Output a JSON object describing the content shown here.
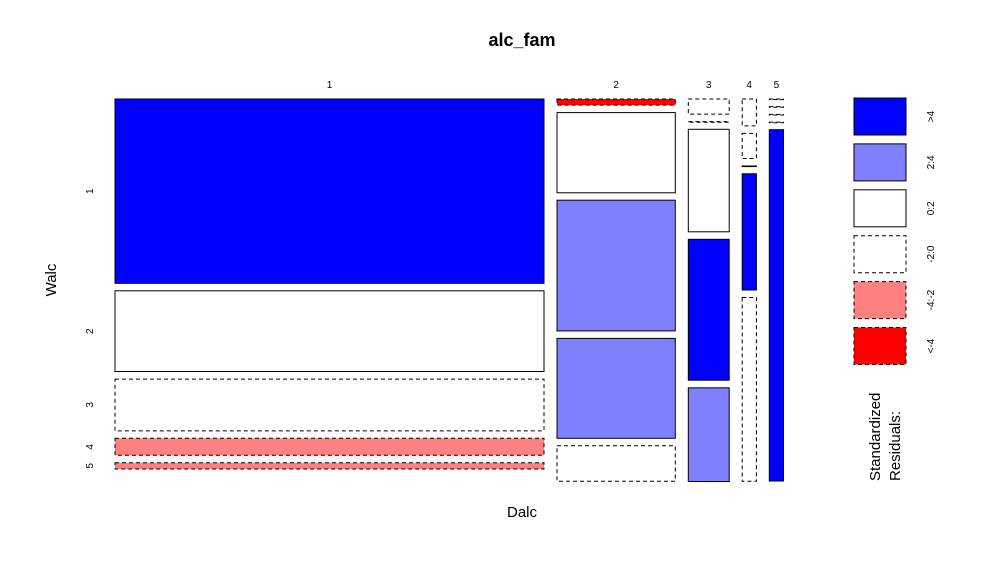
{
  "chart_data": {
    "type": "mosaic",
    "title": "alc_fam",
    "xlabel": "Dalc",
    "ylabel": "Walc",
    "x_categories": [
      "1",
      "2",
      "3",
      "4",
      "5"
    ],
    "y_categories": [
      "1",
      "2",
      "3",
      "4",
      "5"
    ],
    "column_proportions": [
      0.6987,
      0.1926,
      0.0666,
      0.0231,
      0.0231
    ],
    "cells": [
      [
        0.5236,
        0.2294,
        0.1471,
        0.0481,
        0.0176
      ],
      [
        0.0173,
        0.2277,
        0.3712,
        0.2837,
        0.1005
      ],
      [
        0.0428,
        0.0008,
        0.2912,
        0.4003,
        0.2661
      ],
      [
        0.0763,
        0.0713,
        0.001,
        0.3302,
        0.5221
      ],
      [
        0.0004,
        0.0006,
        0.0006,
        0.0004,
        0.998
      ]
    ],
    "residual_class": [
      [
        ">4",
        "0:2",
        "-2:0",
        "-4:-2",
        "-4:-2"
      ],
      [
        "<-4",
        "0:2",
        "2:4",
        "2:4",
        "-2:0"
      ],
      [
        "-2:0",
        "-2:0",
        "0:2",
        ">4",
        "2:4"
      ],
      [
        "-2:0",
        "-2:0",
        "0:2",
        ">4",
        "-2:0"
      ],
      [
        "-2:0",
        "-2:0",
        "-2:0",
        "-2:0",
        ">4"
      ]
    ],
    "legend": {
      "title_line1": "Standardized",
      "title_line2": "Residuals:",
      "position": "right",
      "items": [
        {
          "label": ">4",
          "fill": "#0000FF",
          "dashed": false
        },
        {
          "label": "2:4",
          "fill": "#8080FF",
          "dashed": false
        },
        {
          "label": "0:2",
          "fill": "#FFFFFF",
          "dashed": false
        },
        {
          "label": "-2:0",
          "fill": "#FFFFFF",
          "dashed": true
        },
        {
          "label": "-4:-2",
          "fill": "#FF8080",
          "dashed": true
        },
        {
          "label": "<-4",
          "fill": "#FF0000",
          "dashed": true
        }
      ]
    }
  }
}
